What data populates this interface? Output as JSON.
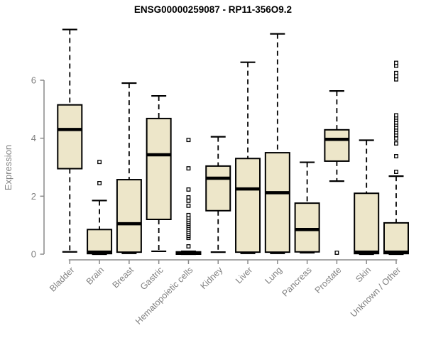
{
  "title": "ENSG00000259087 - RP11-356O9.2",
  "chart_data": {
    "type": "boxplot",
    "title": "ENSG00000259087 - RP11-356O9.2",
    "xlabel": "",
    "ylabel": "Expression",
    "yticks": [
      0,
      2,
      4,
      6
    ],
    "ylim": [
      0,
      7.9
    ],
    "grid": false,
    "legend": "none",
    "categories": [
      "Bladder",
      "Brain",
      "Breast",
      "Gastric",
      "Hematopoietic cells",
      "Kidney",
      "Liver",
      "Lung",
      "Pancreas",
      "Prostate",
      "Skin",
      "Unknown / Other"
    ],
    "series": [
      {
        "category": "Bladder",
        "whisker_low": 0.08,
        "q1": 2.95,
        "median": 4.3,
        "q3": 5.15,
        "whisker_high": 7.75,
        "outliers": []
      },
      {
        "category": "Brain",
        "whisker_low": 0.0,
        "q1": 0.02,
        "median": 0.07,
        "q3": 0.85,
        "whisker_high": 1.85,
        "outliers": [
          2.45,
          3.18
        ]
      },
      {
        "category": "Breast",
        "whisker_low": 0.03,
        "q1": 0.07,
        "median": 1.05,
        "q3": 2.57,
        "whisker_high": 5.9,
        "outliers": []
      },
      {
        "category": "Gastric",
        "whisker_low": 0.1,
        "q1": 1.2,
        "median": 3.43,
        "q3": 4.68,
        "whisker_high": 5.46,
        "outliers": []
      },
      {
        "category": "Hematopoietic cells",
        "whisker_low": 0.0,
        "q1": 0.0,
        "median": 0.04,
        "q3": 0.08,
        "whisker_high": 0.1,
        "outliers": [
          0.27,
          0.56,
          0.63,
          0.7,
          0.77,
          0.84,
          0.91,
          0.98,
          1.05,
          1.12,
          1.19,
          1.26,
          1.35,
          1.67,
          1.84,
          1.96,
          2.23,
          2.96,
          3.94
        ]
      },
      {
        "category": "Kidney",
        "whisker_low": 0.07,
        "q1": 1.5,
        "median": 2.62,
        "q3": 3.04,
        "whisker_high": 4.05,
        "outliers": []
      },
      {
        "category": "Liver",
        "whisker_low": 0.03,
        "q1": 0.07,
        "median": 2.25,
        "q3": 3.3,
        "whisker_high": 6.62,
        "outliers": []
      },
      {
        "category": "Lung",
        "whisker_low": 0.03,
        "q1": 0.07,
        "median": 2.12,
        "q3": 3.5,
        "whisker_high": 7.6,
        "outliers": []
      },
      {
        "category": "Pancreas",
        "whisker_low": 0.05,
        "q1": 0.08,
        "median": 0.85,
        "q3": 1.76,
        "whisker_high": 3.17,
        "outliers": []
      },
      {
        "category": "Prostate",
        "whisker_low": 2.52,
        "q1": 3.21,
        "median": 3.96,
        "q3": 4.29,
        "whisker_high": 5.63,
        "outliers": [
          0.05
        ]
      },
      {
        "category": "Skin",
        "whisker_low": 0.0,
        "q1": 0.02,
        "median": 0.07,
        "q3": 2.1,
        "whisker_high": 3.93,
        "outliers": []
      },
      {
        "category": "Unknown / Other",
        "whisker_low": 0.0,
        "q1": 0.02,
        "median": 0.07,
        "q3": 1.08,
        "whisker_high": 2.69,
        "outliers": [
          2.84,
          3.38,
          3.82,
          3.99,
          4.11,
          4.2,
          4.29,
          4.37,
          4.46,
          4.54,
          4.63,
          4.71,
          4.79,
          6.03,
          6.14,
          6.25,
          6.5,
          6.6
        ]
      }
    ],
    "colors": {
      "box_fill": "#EDE6C9",
      "box_stroke": "#000000",
      "median": "#000000",
      "whisker": "#000000",
      "outlier_stroke": "#000000",
      "outlier_fill": "#ffffff",
      "axis": "#8a8a8a",
      "text_gray": "#808080",
      "title": "#000000",
      "background": "#ffffff"
    }
  }
}
